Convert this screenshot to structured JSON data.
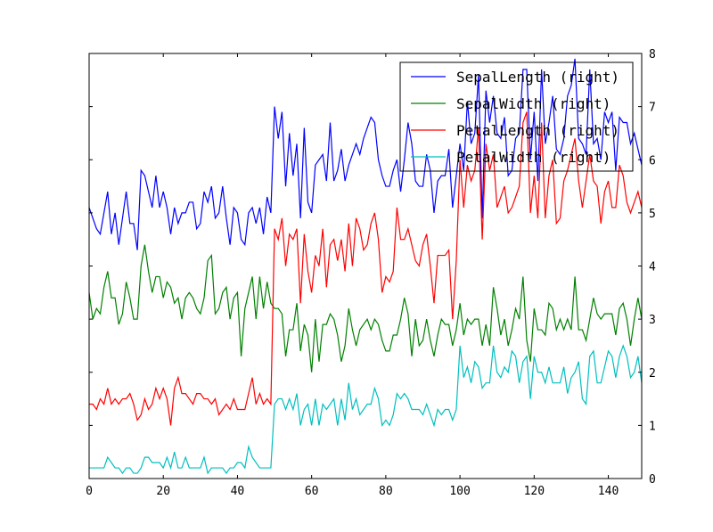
{
  "chart_data": {
    "type": "line",
    "title": "",
    "xlabel": "",
    "ylabel": "",
    "xlim": [
      0,
      149
    ],
    "ylim": [
      0,
      8
    ],
    "y_axis_side": "right",
    "grid": false,
    "legend_placement": "top-right",
    "x_ticks": [
      "0",
      "20",
      "40",
      "60",
      "80",
      "100",
      "120",
      "140"
    ],
    "y_ticks": [
      "0",
      "1",
      "2",
      "3",
      "4",
      "5",
      "6",
      "7",
      "8"
    ],
    "x": [
      0,
      1,
      2,
      3,
      4,
      5,
      6,
      7,
      8,
      9,
      10,
      11,
      12,
      13,
      14,
      15,
      16,
      17,
      18,
      19,
      20,
      21,
      22,
      23,
      24,
      25,
      26,
      27,
      28,
      29,
      30,
      31,
      32,
      33,
      34,
      35,
      36,
      37,
      38,
      39,
      40,
      41,
      42,
      43,
      44,
      45,
      46,
      47,
      48,
      49,
      50,
      51,
      52,
      53,
      54,
      55,
      56,
      57,
      58,
      59,
      60,
      61,
      62,
      63,
      64,
      65,
      66,
      67,
      68,
      69,
      70,
      71,
      72,
      73,
      74,
      75,
      76,
      77,
      78,
      79,
      80,
      81,
      82,
      83,
      84,
      85,
      86,
      87,
      88,
      89,
      90,
      91,
      92,
      93,
      94,
      95,
      96,
      97,
      98,
      99,
      100,
      101,
      102,
      103,
      104,
      105,
      106,
      107,
      108,
      109,
      110,
      111,
      112,
      113,
      114,
      115,
      116,
      117,
      118,
      119,
      120,
      121,
      122,
      123,
      124,
      125,
      126,
      127,
      128,
      129,
      130,
      131,
      132,
      133,
      134,
      135,
      136,
      137,
      138,
      139,
      140,
      141,
      142,
      143,
      144,
      145,
      146,
      147,
      148,
      149
    ],
    "series": [
      {
        "name": "SepalLength (right)",
        "color": "#0000ff",
        "values": [
          5.1,
          4.9,
          4.7,
          4.6,
          5.0,
          5.4,
          4.6,
          5.0,
          4.4,
          4.9,
          5.4,
          4.8,
          4.8,
          4.3,
          5.8,
          5.7,
          5.4,
          5.1,
          5.7,
          5.1,
          5.4,
          5.1,
          4.6,
          5.1,
          4.8,
          5.0,
          5.0,
          5.2,
          5.2,
          4.7,
          4.8,
          5.4,
          5.2,
          5.5,
          4.9,
          5.0,
          5.5,
          4.9,
          4.4,
          5.1,
          5.0,
          4.5,
          4.4,
          5.0,
          5.1,
          4.8,
          5.1,
          4.6,
          5.3,
          5.0,
          7.0,
          6.4,
          6.9,
          5.5,
          6.5,
          5.7,
          6.3,
          4.9,
          6.6,
          5.2,
          5.0,
          5.9,
          6.0,
          6.1,
          5.6,
          6.7,
          5.6,
          5.8,
          6.2,
          5.6,
          5.9,
          6.1,
          6.3,
          6.1,
          6.4,
          6.6,
          6.8,
          6.7,
          6.0,
          5.7,
          5.5,
          5.5,
          5.8,
          6.0,
          5.4,
          6.0,
          6.7,
          6.3,
          5.6,
          5.5,
          5.5,
          6.1,
          5.8,
          5.0,
          5.6,
          5.7,
          5.7,
          6.2,
          5.1,
          5.7,
          6.3,
          5.8,
          7.1,
          6.3,
          6.5,
          7.6,
          4.9,
          7.3,
          6.7,
          7.2,
          6.5,
          6.4,
          6.8,
          5.7,
          5.8,
          6.4,
          6.5,
          7.7,
          7.7,
          6.0,
          6.9,
          5.6,
          7.7,
          6.3,
          6.7,
          7.2,
          6.2,
          6.1,
          6.4,
          7.2,
          7.4,
          7.9,
          6.4,
          6.3,
          6.1,
          7.7,
          6.3,
          6.4,
          6.0,
          6.9,
          6.7,
          6.9,
          5.8,
          6.8,
          6.7,
          6.7,
          6.3,
          6.5,
          6.2,
          5.9
        ]
      },
      {
        "name": "SepalWidth (right)",
        "color": "#008000",
        "values": [
          3.5,
          3.0,
          3.2,
          3.1,
          3.6,
          3.9,
          3.4,
          3.4,
          2.9,
          3.1,
          3.7,
          3.4,
          3.0,
          3.0,
          4.0,
          4.4,
          3.9,
          3.5,
          3.8,
          3.8,
          3.4,
          3.7,
          3.6,
          3.3,
          3.4,
          3.0,
          3.4,
          3.5,
          3.4,
          3.2,
          3.1,
          3.4,
          4.1,
          4.2,
          3.1,
          3.2,
          3.5,
          3.6,
          3.0,
          3.4,
          3.5,
          2.3,
          3.2,
          3.5,
          3.8,
          3.0,
          3.8,
          3.2,
          3.7,
          3.3,
          3.2,
          3.2,
          3.1,
          2.3,
          2.8,
          2.8,
          3.3,
          2.4,
          2.9,
          2.7,
          2.0,
          3.0,
          2.2,
          2.9,
          2.9,
          3.1,
          3.0,
          2.7,
          2.2,
          2.5,
          3.2,
          2.8,
          2.5,
          2.8,
          2.9,
          3.0,
          2.8,
          3.0,
          2.9,
          2.6,
          2.4,
          2.4,
          2.7,
          2.7,
          3.0,
          3.4,
          3.1,
          2.3,
          3.0,
          2.5,
          2.6,
          3.0,
          2.6,
          2.3,
          2.7,
          3.0,
          2.9,
          2.9,
          2.5,
          2.8,
          3.3,
          2.7,
          3.0,
          2.9,
          3.0,
          3.0,
          2.5,
          2.9,
          2.5,
          3.6,
          3.2,
          2.7,
          3.0,
          2.5,
          2.8,
          3.2,
          3.0,
          3.8,
          2.6,
          2.2,
          3.2,
          2.8,
          2.8,
          2.7,
          3.3,
          3.2,
          2.8,
          3.0,
          2.8,
          3.0,
          2.8,
          3.8,
          2.8,
          2.8,
          2.6,
          3.0,
          3.4,
          3.1,
          3.0,
          3.1,
          3.1,
          3.1,
          2.7,
          3.2,
          3.3,
          3.0,
          2.5,
          3.0,
          3.4,
          3.0
        ]
      },
      {
        "name": "PetalLength (right)",
        "color": "#ff0000",
        "values": [
          1.4,
          1.4,
          1.3,
          1.5,
          1.4,
          1.7,
          1.4,
          1.5,
          1.4,
          1.5,
          1.5,
          1.6,
          1.4,
          1.1,
          1.2,
          1.5,
          1.3,
          1.4,
          1.7,
          1.5,
          1.7,
          1.5,
          1.0,
          1.7,
          1.9,
          1.6,
          1.6,
          1.5,
          1.4,
          1.6,
          1.6,
          1.5,
          1.5,
          1.4,
          1.5,
          1.2,
          1.3,
          1.4,
          1.3,
          1.5,
          1.3,
          1.3,
          1.3,
          1.6,
          1.9,
          1.4,
          1.6,
          1.4,
          1.5,
          1.4,
          4.7,
          4.5,
          4.9,
          4.0,
          4.6,
          4.5,
          4.7,
          3.3,
          4.6,
          3.9,
          3.5,
          4.2,
          4.0,
          4.7,
          3.6,
          4.4,
          4.5,
          4.1,
          4.5,
          3.9,
          4.8,
          4.0,
          4.9,
          4.7,
          4.3,
          4.4,
          4.8,
          5.0,
          4.5,
          3.5,
          3.8,
          3.7,
          3.9,
          5.1,
          4.5,
          4.5,
          4.7,
          4.4,
          4.1,
          4.0,
          4.4,
          4.6,
          4.0,
          3.3,
          4.2,
          4.2,
          4.2,
          4.3,
          3.0,
          4.1,
          6.0,
          5.1,
          5.9,
          5.6,
          5.8,
          6.6,
          4.5,
          6.3,
          5.8,
          6.1,
          5.1,
          5.3,
          5.5,
          5.0,
          5.1,
          5.3,
          5.5,
          6.7,
          6.9,
          5.0,
          5.7,
          4.9,
          6.7,
          4.9,
          5.7,
          6.0,
          4.8,
          4.9,
          5.6,
          5.8,
          6.1,
          6.4,
          5.6,
          5.1,
          5.6,
          6.1,
          5.6,
          5.5,
          4.8,
          5.4,
          5.6,
          5.1,
          5.1,
          5.9,
          5.7,
          5.2,
          5.0,
          5.2,
          5.4,
          5.1
        ]
      },
      {
        "name": "PetalWidth (right)",
        "color": "#00bfbf",
        "values": [
          0.2,
          0.2,
          0.2,
          0.2,
          0.2,
          0.4,
          0.3,
          0.2,
          0.2,
          0.1,
          0.2,
          0.2,
          0.1,
          0.1,
          0.2,
          0.4,
          0.4,
          0.3,
          0.3,
          0.3,
          0.2,
          0.4,
          0.2,
          0.5,
          0.2,
          0.2,
          0.4,
          0.2,
          0.2,
          0.2,
          0.2,
          0.4,
          0.1,
          0.2,
          0.2,
          0.2,
          0.2,
          0.1,
          0.2,
          0.2,
          0.3,
          0.3,
          0.2,
          0.6,
          0.4,
          0.3,
          0.2,
          0.2,
          0.2,
          0.2,
          1.4,
          1.5,
          1.5,
          1.3,
          1.5,
          1.3,
          1.6,
          1.0,
          1.3,
          1.4,
          1.0,
          1.5,
          1.0,
          1.4,
          1.3,
          1.4,
          1.5,
          1.0,
          1.5,
          1.1,
          1.8,
          1.3,
          1.5,
          1.2,
          1.3,
          1.4,
          1.4,
          1.7,
          1.5,
          1.0,
          1.1,
          1.0,
          1.2,
          1.6,
          1.5,
          1.6,
          1.5,
          1.3,
          1.3,
          1.3,
          1.2,
          1.4,
          1.2,
          1.0,
          1.3,
          1.2,
          1.3,
          1.3,
          1.1,
          1.3,
          2.5,
          1.9,
          2.1,
          1.8,
          2.2,
          2.1,
          1.7,
          1.8,
          1.8,
          2.5,
          2.0,
          1.9,
          2.1,
          2.0,
          2.4,
          2.3,
          1.8,
          2.2,
          2.3,
          1.5,
          2.3,
          2.0,
          2.0,
          1.8,
          2.1,
          1.8,
          1.8,
          1.8,
          2.1,
          1.6,
          1.9,
          2.0,
          2.2,
          1.5,
          1.4,
          2.3,
          2.4,
          1.8,
          1.8,
          2.1,
          2.4,
          2.3,
          1.9,
          2.3,
          2.5,
          2.3,
          1.9,
          2.0,
          2.3,
          1.8
        ]
      }
    ]
  }
}
